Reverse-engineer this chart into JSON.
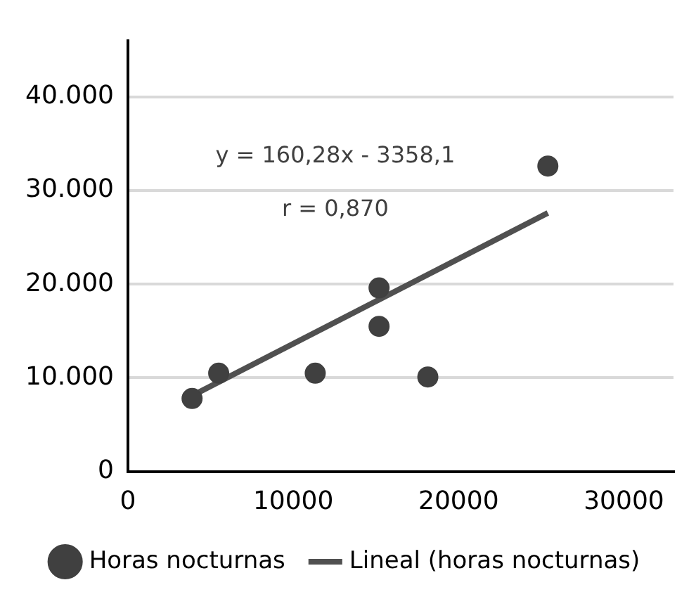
{
  "chart_data": {
    "type": "scatter",
    "xlim": [
      0,
      33000
    ],
    "xticks": [
      0,
      10000,
      20000,
      30000
    ],
    "ylim": [
      0,
      46000
    ],
    "yticks": [
      {
        "value": 0,
        "label": "0"
      },
      {
        "value": 10000,
        "label": "10.000"
      },
      {
        "value": 20000,
        "label": "20.000"
      },
      {
        "value": 30000,
        "label": "30.000"
      },
      {
        "value": 40000,
        "label": "40.000"
      }
    ],
    "grid": "y",
    "legend": "bottom",
    "marker": "circle",
    "annotations": [
      "y = 160,28x - 3358,1",
      "r = 0,870"
    ],
    "series": [
      {
        "name": "Horas nocturnas",
        "color": "#404040",
        "x": [
          3880,
          5490,
          11330,
          15190,
          15190,
          18140,
          25400
        ],
        "values": [
          7800,
          10500,
          10500,
          19600,
          15500,
          10100,
          32600
        ]
      },
      {
        "name": "Lineal (horas nocturnas)",
        "type": "line",
        "color": "#505050",
        "x": [
          3880,
          25400
        ],
        "values": [
          8100,
          27600
        ],
        "marker": "none",
        "line_style": "solid"
      }
    ]
  }
}
